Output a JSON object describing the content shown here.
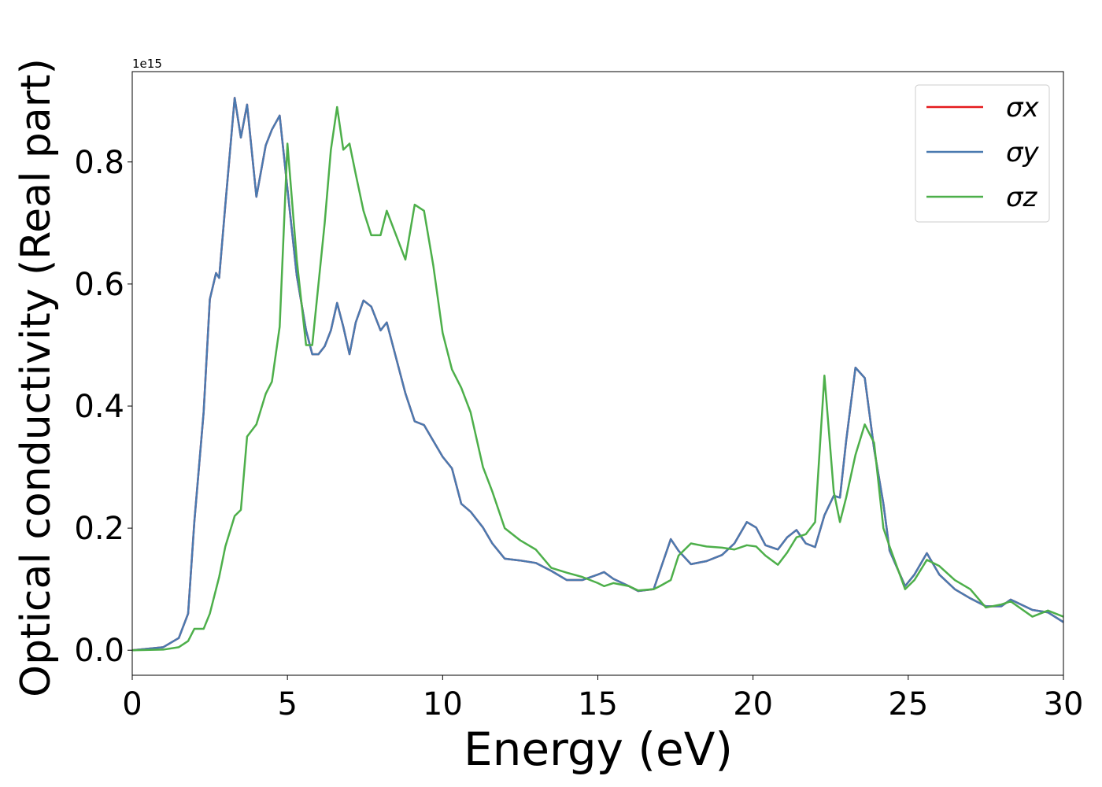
{
  "chart_data": {
    "type": "line",
    "x_label": "Energy (eV)",
    "y_label": "Optical conductivity (Real part)",
    "y_offset_label": "1e15",
    "xlim": [
      0,
      30
    ],
    "ylim": [
      -0.041,
      0.948
    ],
    "xticks": [
      0,
      5,
      10,
      15,
      20,
      25,
      30
    ],
    "yticks": [
      {
        "value": 0,
        "label": "0.0"
      },
      0.2,
      0.4,
      0.6,
      0.8
    ],
    "grid": false,
    "legend_position": "upper right",
    "x": [
      0,
      1,
      1.5,
      1.8,
      2.0,
      2.3,
      2.5,
      2.7,
      2.8,
      3.0,
      3.3,
      3.5,
      3.7,
      4.0,
      4.3,
      4.5,
      4.75,
      5.0,
      5.3,
      5.6,
      5.8,
      6.0,
      6.2,
      6.4,
      6.6,
      6.8,
      7.0,
      7.2,
      7.45,
      7.7,
      8.0,
      8.2,
      8.5,
      8.8,
      9.1,
      9.4,
      9.7,
      10.0,
      10.3,
      10.6,
      10.9,
      11.3,
      11.6,
      12,
      12.5,
      13,
      13.5,
      14,
      14.5,
      15,
      15.2,
      15.5,
      16,
      16.3,
      16.8,
      17.0,
      17.35,
      17.6,
      18,
      18.5,
      19,
      19.4,
      19.8,
      20.1,
      20.4,
      20.8,
      21.1,
      21.4,
      21.7,
      22,
      22.3,
      22.6,
      22.8,
      23.0,
      23.3,
      23.6,
      23.9,
      24.2,
      24.4,
      24.9,
      25.2,
      25.6,
      26,
      26.5,
      27,
      27.5,
      28,
      28.3,
      29,
      29.5,
      30
    ],
    "series": [
      {
        "name": "σx",
        "color": "#e41a1c",
        "values": [
          0,
          0.005,
          0.02,
          0.06,
          0.21,
          0.39,
          0.575,
          0.618,
          0.61,
          0.73,
          0.905,
          0.84,
          0.894,
          0.743,
          0.827,
          0.853,
          0.876,
          0.756,
          0.614,
          0.524,
          0.485,
          0.485,
          0.498,
          0.524,
          0.569,
          0.53,
          0.485,
          0.537,
          0.573,
          0.563,
          0.524,
          0.537,
          0.479,
          0.421,
          0.375,
          0.369,
          0.343,
          0.317,
          0.298,
          0.24,
          0.227,
          0.201,
          0.175,
          0.15,
          0.147,
          0.143,
          0.13,
          0.115,
          0.115,
          0.124,
          0.128,
          0.117,
          0.105,
          0.097,
          0.1,
          0.13,
          0.182,
          0.163,
          0.141,
          0.146,
          0.156,
          0.175,
          0.21,
          0.201,
          0.172,
          0.165,
          0.185,
          0.197,
          0.175,
          0.169,
          0.221,
          0.253,
          0.25,
          0.343,
          0.463,
          0.446,
          0.33,
          0.24,
          0.163,
          0.105,
          0.124,
          0.159,
          0.124,
          0.1,
          0.085,
          0.072,
          0.072,
          0.083,
          0.066,
          0.062,
          0.046
        ]
      },
      {
        "name": "σy",
        "color": "#4a7ab0",
        "values": [
          0,
          0.005,
          0.02,
          0.06,
          0.21,
          0.39,
          0.575,
          0.618,
          0.61,
          0.73,
          0.905,
          0.84,
          0.894,
          0.743,
          0.827,
          0.853,
          0.876,
          0.756,
          0.614,
          0.524,
          0.485,
          0.485,
          0.498,
          0.524,
          0.569,
          0.53,
          0.485,
          0.537,
          0.573,
          0.563,
          0.524,
          0.537,
          0.479,
          0.421,
          0.375,
          0.369,
          0.343,
          0.317,
          0.298,
          0.24,
          0.227,
          0.201,
          0.175,
          0.15,
          0.147,
          0.143,
          0.13,
          0.115,
          0.115,
          0.124,
          0.128,
          0.117,
          0.105,
          0.097,
          0.1,
          0.13,
          0.182,
          0.163,
          0.141,
          0.146,
          0.156,
          0.175,
          0.21,
          0.201,
          0.172,
          0.165,
          0.185,
          0.197,
          0.175,
          0.169,
          0.221,
          0.253,
          0.25,
          0.343,
          0.463,
          0.446,
          0.33,
          0.24,
          0.163,
          0.105,
          0.124,
          0.159,
          0.124,
          0.1,
          0.085,
          0.072,
          0.072,
          0.083,
          0.066,
          0.062,
          0.046
        ]
      },
      {
        "name": "σz",
        "color": "#4daf4a",
        "values": [
          0,
          0.001,
          0.005,
          0.015,
          0.035,
          0.035,
          0.06,
          0.1,
          0.12,
          0.17,
          0.22,
          0.23,
          0.35,
          0.37,
          0.42,
          0.44,
          0.53,
          0.83,
          0.64,
          0.5,
          0.5,
          0.6,
          0.7,
          0.82,
          0.89,
          0.82,
          0.83,
          0.78,
          0.72,
          0.68,
          0.68,
          0.72,
          0.68,
          0.64,
          0.73,
          0.72,
          0.63,
          0.52,
          0.46,
          0.43,
          0.39,
          0.3,
          0.26,
          0.2,
          0.18,
          0.165,
          0.135,
          0.127,
          0.12,
          0.11,
          0.105,
          0.11,
          0.105,
          0.098,
          0.1,
          0.105,
          0.115,
          0.155,
          0.175,
          0.17,
          0.168,
          0.165,
          0.172,
          0.17,
          0.155,
          0.14,
          0.16,
          0.185,
          0.19,
          0.21,
          0.45,
          0.26,
          0.21,
          0.25,
          0.32,
          0.37,
          0.34,
          0.2,
          0.17,
          0.1,
          0.115,
          0.148,
          0.138,
          0.115,
          0.1,
          0.07,
          0.075,
          0.08,
          0.055,
          0.065,
          0.055
        ]
      }
    ]
  }
}
